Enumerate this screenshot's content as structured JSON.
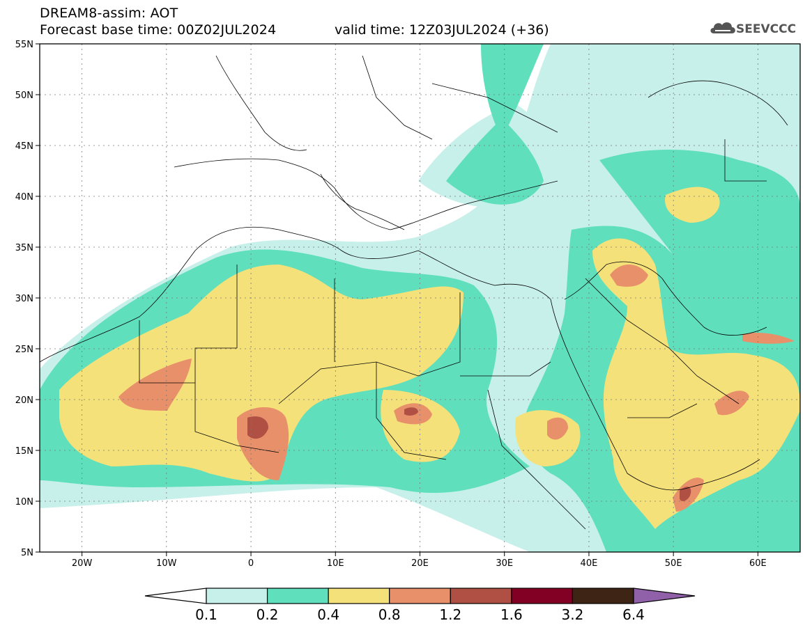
{
  "header": {
    "title": "DREAM8-assim: AOT",
    "base_time": "Forecast base time: 00Z02JUL2024",
    "valid_time": "valid time: 12Z03JUL2024 (+36)"
  },
  "logo": {
    "text": "SEEVCCC",
    "icon": "cloud-icon"
  },
  "map": {
    "lon_range": [
      -25,
      65
    ],
    "lat_range": [
      5,
      55
    ],
    "lon_ticks": [
      {
        "value": -20,
        "label": "20W"
      },
      {
        "value": -10,
        "label": "10W"
      },
      {
        "value": 0,
        "label": "0"
      },
      {
        "value": 10,
        "label": "10E"
      },
      {
        "value": 20,
        "label": "20E"
      },
      {
        "value": 30,
        "label": "30E"
      },
      {
        "value": 40,
        "label": "40E"
      },
      {
        "value": 50,
        "label": "50E"
      },
      {
        "value": 60,
        "label": "60E"
      }
    ],
    "lat_ticks": [
      {
        "value": 55,
        "label": "55N"
      },
      {
        "value": 50,
        "label": "50N"
      },
      {
        "value": 45,
        "label": "45N"
      },
      {
        "value": 40,
        "label": "40N"
      },
      {
        "value": 35,
        "label": "35N"
      },
      {
        "value": 30,
        "label": "30N"
      },
      {
        "value": 25,
        "label": "25N"
      },
      {
        "value": 20,
        "label": "20N"
      },
      {
        "value": 15,
        "label": "15N"
      },
      {
        "value": 10,
        "label": "10N"
      },
      {
        "value": 5,
        "label": "5N"
      }
    ],
    "grid": true
  },
  "colorbar": {
    "colors": [
      "#ffffff",
      "#c8f0ea",
      "#5fdfbc",
      "#f5e17a",
      "#e8906a",
      "#b05044",
      "#820024",
      "#3d2414",
      "#9060a8"
    ],
    "labels": [
      "0.1",
      "0.2",
      "0.4",
      "0.8",
      "1.2",
      "1.6",
      "3.2",
      "6.4"
    ]
  }
}
